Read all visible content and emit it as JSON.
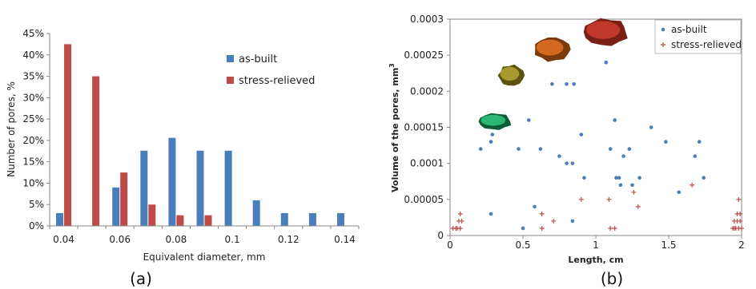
{
  "chart_data": [
    {
      "type": "bar",
      "panel_label": "(a)",
      "xlabel": "Equivalent diameter, mm",
      "ylabel": "Number of pores, %",
      "ylim": [
        0,
        45
      ],
      "yticks": [
        "0%",
        "5%",
        "10%",
        "15%",
        "20%",
        "25%",
        "30%",
        "35%",
        "40%",
        "45%"
      ],
      "categories": [
        "0.04",
        "0.05",
        "0.06",
        "0.07",
        "0.08",
        "0.09",
        "0.1",
        "0.11",
        "0.12",
        "0.13",
        "0.14"
      ],
      "xticks_shown": [
        "0.04",
        "0.06",
        "0.08",
        "0.1",
        "0.12",
        "0.14"
      ],
      "series": [
        {
          "name": "as-built",
          "color": "#4a7ebb",
          "values": [
            3,
            0,
            9,
            17.6,
            20.6,
            17.6,
            17.6,
            6,
            3,
            3,
            3
          ]
        },
        {
          "name": "stress-relieved",
          "color": "#be4b48",
          "values": [
            42.5,
            35,
            12.5,
            5,
            2.5,
            2.5,
            0,
            0,
            0,
            0,
            0
          ]
        }
      ],
      "legend_position": "right"
    },
    {
      "type": "scatter",
      "panel_label": "(b)",
      "xlabel": "Length, cm",
      "ylabel": "Volume of the pores, mm",
      "ylabel_sup": "3",
      "xlim": [
        0,
        2
      ],
      "ylim": [
        0,
        0.0003
      ],
      "xticks": [
        "0",
        "0.5",
        "1",
        "1.5",
        "2"
      ],
      "yticks": [
        "0",
        "0.00005",
        "0.0001",
        "0.00015",
        "0.0002",
        "0.00025",
        "0.0003"
      ],
      "legend_position": "top-right",
      "series": [
        {
          "name": "as-built",
          "marker": "dot",
          "color": "#4a7ebb",
          "points": [
            [
              0.21,
              0.00012
            ],
            [
              0.28,
              0.00013
            ],
            [
              0.29,
              0.00014
            ],
            [
              0.28,
              3e-05
            ],
            [
              0.47,
              0.00012
            ],
            [
              0.5,
              1e-05
            ],
            [
              0.54,
              0.00016
            ],
            [
              0.58,
              4e-05
            ],
            [
              0.62,
              0.00012
            ],
            [
              0.7,
              0.00021
            ],
            [
              0.75,
              0.00011
            ],
            [
              0.8,
              0.00021
            ],
            [
              0.8,
              0.0001
            ],
            [
              0.84,
              0.0001
            ],
            [
              0.84,
              2e-05
            ],
            [
              0.85,
              0.00021
            ],
            [
              0.9,
              0.00014
            ],
            [
              0.92,
              8e-05
            ],
            [
              1.07,
              0.00024
            ],
            [
              1.1,
              0.00012
            ],
            [
              1.13,
              0.00016
            ],
            [
              1.14,
              8e-05
            ],
            [
              1.16,
              8e-05
            ],
            [
              1.17,
              7e-05
            ],
            [
              1.19,
              0.00011
            ],
            [
              1.23,
              0.00012
            ],
            [
              1.25,
              7e-05
            ],
            [
              1.3,
              8e-05
            ],
            [
              1.38,
              0.00015
            ],
            [
              1.42,
              0.00026
            ],
            [
              1.48,
              0.00013
            ],
            [
              1.57,
              6e-05
            ],
            [
              1.68,
              0.00011
            ],
            [
              1.71,
              0.00013
            ],
            [
              1.74,
              8e-05
            ]
          ]
        },
        {
          "name": "stress-relieved",
          "marker": "plus",
          "color": "#be4b48",
          "points": [
            [
              0.02,
              1e-05
            ],
            [
              0.04,
              1e-05
            ],
            [
              0.05,
              1e-05
            ],
            [
              0.06,
              2e-05
            ],
            [
              0.07,
              3e-05
            ],
            [
              0.07,
              1e-05
            ],
            [
              0.08,
              2e-05
            ],
            [
              0.63,
              3e-05
            ],
            [
              0.63,
              1e-05
            ],
            [
              0.71,
              2e-05
            ],
            [
              0.9,
              5e-05
            ],
            [
              1.09,
              5e-05
            ],
            [
              1.1,
              1e-05
            ],
            [
              1.13,
              1e-05
            ],
            [
              1.26,
              6e-05
            ],
            [
              1.29,
              4e-05
            ],
            [
              1.66,
              7e-05
            ],
            [
              1.94,
              1e-05
            ],
            [
              1.95,
              1e-05
            ],
            [
              1.95,
              2e-05
            ],
            [
              1.96,
              1e-05
            ],
            [
              1.97,
              2e-05
            ],
            [
              1.97,
              3e-05
            ],
            [
              1.98,
              5e-05
            ],
            [
              1.98,
              1e-05
            ],
            [
              1.99,
              3e-05
            ],
            [
              1.99,
              2e-05
            ],
            [
              2.0,
              1e-05
            ]
          ]
        }
      ],
      "pore_images": [
        {
          "color": "#c0392b",
          "shade": "#7a1f14",
          "x": 1.07,
          "y": 0.000282
        },
        {
          "color": "#d2691e",
          "shade": "#7a3a0c",
          "x": 0.7,
          "y": 0.000258
        },
        {
          "color": "#a89a2e",
          "shade": "#5c5210",
          "x": 0.42,
          "y": 0.000222
        },
        {
          "color": "#2bb673",
          "shade": "#0e5c36",
          "x": 0.31,
          "y": 0.000158
        }
      ]
    }
  ]
}
